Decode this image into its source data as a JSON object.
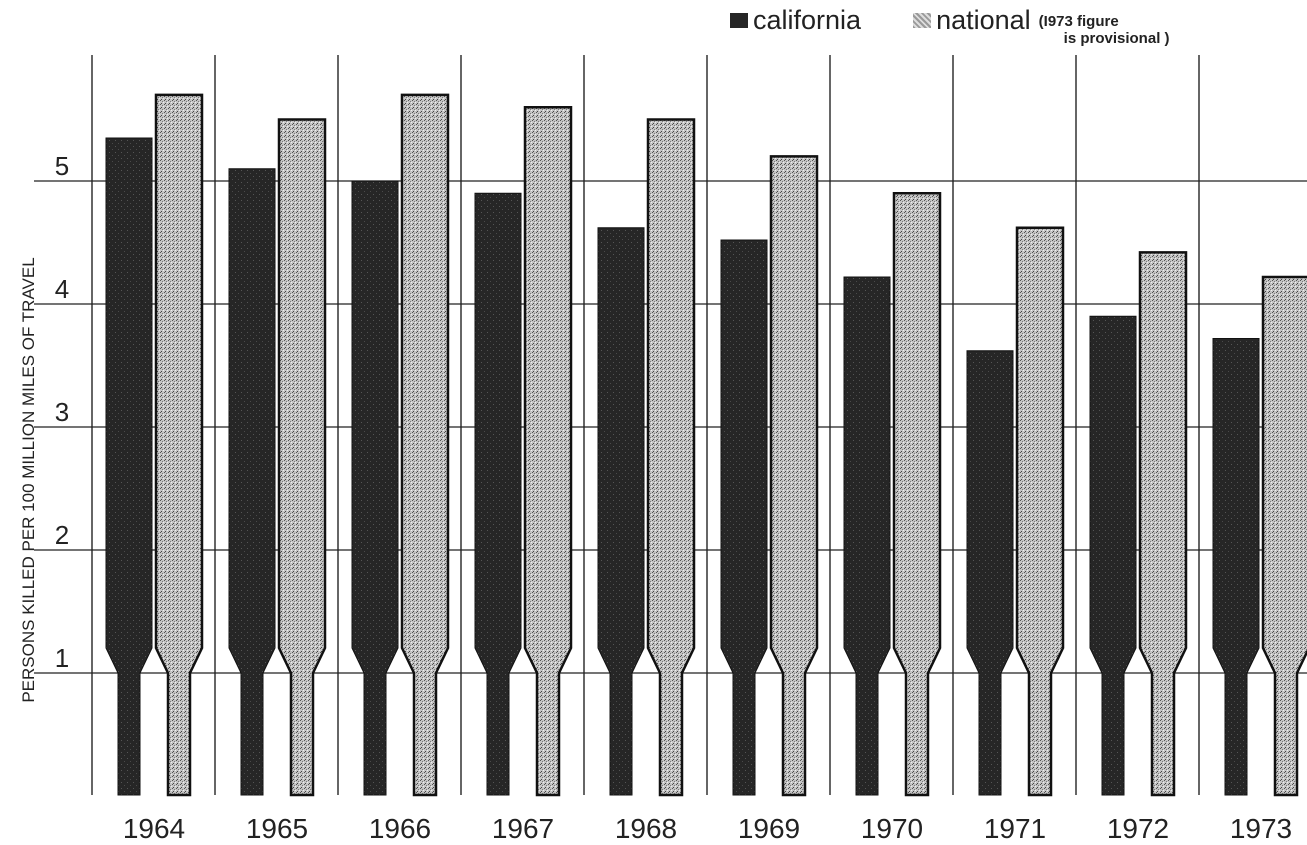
{
  "chart_data": {
    "type": "bar",
    "ylabel": "PERSONS KILLED PER 100 MILLION MILES OF TRAVEL",
    "xlabel": "",
    "categories": [
      "1964",
      "1965",
      "1966",
      "1967",
      "1968",
      "1969",
      "1970",
      "1971",
      "1972",
      "1973"
    ],
    "series": [
      {
        "name": "california",
        "color": "#2a2a2a",
        "values": [
          5.35,
          5.1,
          5.0,
          4.9,
          4.62,
          4.52,
          4.22,
          3.62,
          3.9,
          3.72
        ]
      },
      {
        "name": "national",
        "color": "#b8b8b8",
        "values": [
          5.7,
          5.5,
          5.7,
          5.6,
          5.5,
          5.2,
          4.9,
          4.62,
          4.42,
          4.22
        ]
      }
    ],
    "yticks": [
      "1",
      "2",
      "3",
      "4",
      "5"
    ],
    "ylim": [
      0,
      6.3
    ],
    "grid": true,
    "legend_position": "top-right",
    "note": "(I973 figure\n      is provisional )"
  }
}
